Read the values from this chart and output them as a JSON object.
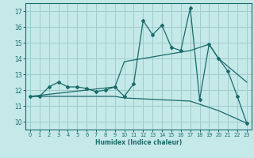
{
  "xlabel": "Humidex (Indice chaleur)",
  "xlim": [
    -0.5,
    23.5
  ],
  "ylim": [
    9.5,
    17.5
  ],
  "xticks": [
    0,
    1,
    2,
    3,
    4,
    5,
    6,
    7,
    8,
    9,
    10,
    11,
    12,
    13,
    14,
    15,
    16,
    17,
    18,
    19,
    20,
    21,
    22,
    23
  ],
  "yticks": [
    10,
    11,
    12,
    13,
    14,
    15,
    16,
    17
  ],
  "bg_color": "#c5e8e8",
  "grid_color": "#a0cccc",
  "line_color": "#1a6b6b",
  "line1_x": [
    0,
    1,
    2,
    3,
    4,
    5,
    6,
    7,
    8,
    9,
    10,
    11,
    12,
    13,
    14,
    15,
    16,
    17,
    18,
    19,
    20,
    21,
    22,
    23
  ],
  "line1_y": [
    11.6,
    11.6,
    12.2,
    12.5,
    12.2,
    12.2,
    12.1,
    11.9,
    12.0,
    12.2,
    11.6,
    12.4,
    16.4,
    15.5,
    16.1,
    14.7,
    14.5,
    17.2,
    11.4,
    14.9,
    14.0,
    13.2,
    11.6,
    9.9
  ],
  "line2_x": [
    0,
    9,
    10,
    17,
    19,
    20,
    23
  ],
  "line2_y": [
    11.6,
    12.2,
    13.8,
    14.5,
    14.9,
    14.0,
    12.5
  ],
  "line3_x": [
    0,
    9,
    10,
    17,
    19,
    20,
    23
  ],
  "line3_y": [
    11.6,
    11.6,
    11.5,
    11.3,
    10.9,
    10.7,
    9.9
  ]
}
